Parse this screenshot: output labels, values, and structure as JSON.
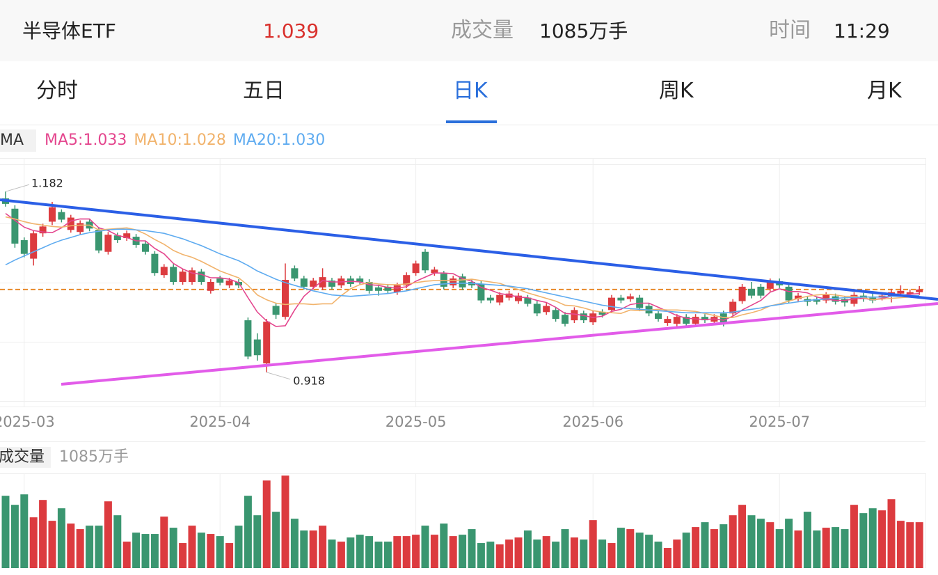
{
  "header": {
    "name": "半导体ETF",
    "price": "1.039",
    "volume_label": "成交量",
    "volume": "1085万手",
    "time_label": "时间",
    "time": "11:29"
  },
  "tabs": [
    "分时",
    "五日",
    "日K",
    "周K",
    "月K"
  ],
  "active_tab": 2,
  "chart_data": {
    "type": "candlestick",
    "indicator": "MA",
    "categories": [
      null,
      null,
      "2025-03",
      null,
      null,
      null,
      null,
      null,
      null,
      null,
      null,
      null,
      null,
      null,
      null,
      null,
      null,
      null,
      null,
      null,
      null,
      null,
      null,
      "2025-04",
      null,
      null,
      null,
      null,
      null,
      null,
      null,
      null,
      null,
      null,
      null,
      null,
      null,
      null,
      null,
      null,
      null,
      null,
      null,
      null,
      "2025-05",
      null,
      null,
      null,
      null,
      null,
      null,
      null,
      null,
      null,
      null,
      null,
      null,
      null,
      null,
      null,
      null,
      null,
      null,
      "2025-06",
      null,
      null,
      null,
      null,
      null,
      null,
      null,
      null,
      null,
      null,
      null,
      null,
      null,
      null,
      null,
      null,
      null,
      null,
      null,
      "2025-07",
      null,
      null,
      null,
      null,
      null,
      null,
      null,
      null,
      null,
      null,
      null,
      null,
      null,
      null,
      null
    ],
    "ylim": [
      0.868,
      1.231
    ],
    "up_color": "#dc3b3f",
    "down_color": "#3a9670",
    "last_price_color": "#e8892a",
    "open": [
      1.172,
      1.157,
      1.111,
      1.084,
      1.121,
      1.138,
      1.152,
      1.126,
      1.123,
      1.138,
      1.126,
      1.094,
      1.118,
      1.114,
      1.116,
      1.106,
      1.091,
      1.06,
      1.072,
      1.05,
      1.05,
      1.065,
      1.037,
      1.055,
      1.045,
      1.05,
      0.994,
      0.966,
      0.931,
      1.015,
      0.999,
      1.07,
      1.055,
      1.043,
      1.042,
      1.052,
      1.045,
      1.055,
      1.055,
      1.05,
      1.042,
      1.043,
      1.035,
      1.045,
      1.063,
      1.094,
      1.063,
      1.062,
      1.045,
      1.058,
      1.05,
      1.047,
      1.027,
      1.02,
      1.027,
      1.022,
      1.027,
      1.018,
      1.006,
      1.009,
      1.002,
      0.994,
      1.004,
      0.991,
      1.006,
      1.009,
      1.027,
      1.025,
      1.027,
      1.015,
      1.004,
      0.99,
      0.989,
      0.999,
      0.989,
      0.999,
      0.992,
      1.004,
      1.004,
      1.022,
      1.04,
      1.043,
      1.04,
      1.051,
      1.043,
      1.025,
      1.025,
      1.025,
      1.023,
      1.029,
      1.025,
      1.018,
      1.03,
      1.027,
      1.027,
      1.029,
      1.033,
      1.032,
      1.035
    ],
    "high": [
      1.182,
      1.162,
      1.115,
      1.125,
      1.135,
      1.167,
      1.156,
      1.148,
      1.14,
      1.142,
      1.13,
      1.123,
      1.122,
      1.125,
      1.12,
      1.11,
      1.095,
      1.076,
      1.076,
      1.069,
      1.071,
      1.069,
      1.054,
      1.059,
      1.056,
      1.054,
      0.998,
      0.975,
      0.996,
      1.019,
      1.077,
      1.074,
      1.059,
      1.056,
      1.07,
      1.056,
      1.059,
      1.059,
      1.059,
      1.054,
      1.046,
      1.047,
      1.049,
      1.064,
      1.081,
      1.098,
      1.072,
      1.066,
      1.059,
      1.062,
      1.054,
      1.051,
      1.031,
      1.035,
      1.037,
      1.034,
      1.031,
      1.022,
      1.019,
      1.013,
      1.006,
      1.013,
      1.008,
      1.008,
      1.01,
      1.031,
      1.031,
      1.033,
      1.031,
      1.019,
      1.008,
      1.0,
      1.003,
      1.003,
      1.003,
      1.003,
      1.003,
      1.008,
      1.025,
      1.047,
      1.05,
      1.047,
      1.055,
      1.055,
      1.047,
      1.034,
      1.029,
      1.029,
      1.035,
      1.033,
      1.029,
      1.035,
      1.034,
      1.035,
      1.034,
      1.04,
      1.045,
      1.039,
      1.044
    ],
    "low": [
      1.16,
      1.1,
      1.086,
      1.074,
      1.116,
      1.133,
      1.137,
      1.122,
      1.119,
      1.124,
      1.092,
      1.09,
      1.107,
      1.11,
      1.1,
      1.09,
      1.059,
      1.056,
      1.046,
      1.046,
      1.046,
      1.046,
      1.033,
      1.045,
      1.041,
      1.041,
      0.937,
      0.935,
      0.918,
      0.996,
      0.995,
      1.051,
      1.039,
      1.039,
      1.038,
      1.039,
      1.041,
      1.043,
      1.046,
      1.033,
      1.03,
      1.033,
      1.031,
      1.041,
      1.059,
      1.063,
      1.059,
      1.039,
      1.041,
      1.038,
      1.041,
      1.019,
      1.019,
      1.016,
      1.023,
      1.018,
      1.014,
      1.0,
      1.002,
      0.992,
      0.985,
      0.99,
      0.99,
      0.987,
      0.998,
      1.005,
      1.019,
      1.021,
      1.008,
      1.0,
      0.992,
      0.986,
      0.985,
      0.985,
      0.985,
      0.99,
      0.988,
      0.985,
      1.0,
      1.018,
      1.026,
      1.026,
      1.036,
      1.041,
      1.019,
      1.021,
      1.015,
      1.017,
      1.019,
      1.017,
      1.014,
      1.014,
      1.021,
      1.019,
      1.023,
      1.02,
      1.029,
      1.028,
      1.031
    ],
    "close": [
      1.164,
      1.106,
      1.091,
      1.121,
      1.131,
      1.159,
      1.141,
      1.144,
      1.136,
      1.128,
      1.096,
      1.119,
      1.111,
      1.121,
      1.104,
      1.094,
      1.063,
      1.072,
      1.05,
      1.065,
      1.067,
      1.05,
      1.05,
      1.049,
      1.052,
      1.045,
      0.941,
      0.943,
      0.992,
      1.002,
      1.053,
      1.055,
      1.043,
      1.052,
      1.057,
      1.043,
      1.055,
      1.047,
      1.05,
      1.037,
      1.037,
      1.037,
      1.045,
      1.06,
      1.077,
      1.067,
      1.068,
      1.043,
      1.055,
      1.042,
      1.045,
      1.023,
      1.023,
      1.031,
      1.033,
      1.03,
      1.018,
      1.004,
      1.015,
      0.996,
      0.989,
      1.009,
      0.994,
      1.004,
      1.002,
      1.027,
      1.023,
      1.029,
      1.012,
      1.004,
      0.996,
      0.996,
      0.999,
      0.989,
      0.999,
      0.994,
      0.999,
      0.989,
      1.021,
      1.043,
      1.03,
      1.03,
      1.051,
      1.045,
      1.023,
      1.03,
      1.021,
      1.021,
      1.031,
      1.021,
      1.02,
      1.031,
      1.025,
      1.023,
      1.03,
      1.035,
      1.037,
      1.035,
      1.039
    ],
    "series": [
      {
        "name": "MA5:1.033",
        "color": "#e4468e",
        "values": [
          1.15,
          1.14,
          1.13,
          1.125,
          1.123,
          1.122,
          1.129,
          1.139,
          1.142,
          1.142,
          1.129,
          1.125,
          1.118,
          1.115,
          1.11,
          1.11,
          1.099,
          1.091,
          1.077,
          1.069,
          1.063,
          1.061,
          1.056,
          1.056,
          1.054,
          1.049,
          1.027,
          1.006,
          0.993,
          0.985,
          0.986,
          1.009,
          1.029,
          1.041,
          1.052,
          1.05,
          1.05,
          1.051,
          1.05,
          1.046,
          1.045,
          1.042,
          1.041,
          1.043,
          1.051,
          1.057,
          1.063,
          1.063,
          1.062,
          1.055,
          1.051,
          1.042,
          1.038,
          1.033,
          1.031,
          1.028,
          1.027,
          1.023,
          1.02,
          1.013,
          1.004,
          1.003,
          1.001,
          0.998,
          1.0,
          1.007,
          1.01,
          1.017,
          1.019,
          1.019,
          1.013,
          1.007,
          1.001,
          0.997,
          0.996,
          0.995,
          0.996,
          0.994,
          1.0,
          1.009,
          1.016,
          1.023,
          1.035,
          1.04,
          1.036,
          1.036,
          1.034,
          1.028,
          1.025,
          1.023,
          1.023,
          1.025,
          1.026,
          1.024,
          1.026,
          1.029,
          1.03,
          1.032,
          1.033
        ]
      },
      {
        "name": "MA10:1.028",
        "color": "#f1b36c",
        "values": [
          1.145,
          1.142,
          1.138,
          1.135,
          1.133,
          1.131,
          1.13,
          1.132,
          1.133,
          1.133,
          1.126,
          1.127,
          1.128,
          1.129,
          1.126,
          1.12,
          1.112,
          1.105,
          1.096,
          1.09,
          1.086,
          1.08,
          1.073,
          1.066,
          1.061,
          1.056,
          1.045,
          1.031,
          1.024,
          1.019,
          1.017,
          1.018,
          1.018,
          1.017,
          1.018,
          1.018,
          1.03,
          1.04,
          1.046,
          1.049,
          1.047,
          1.046,
          1.046,
          1.047,
          1.049,
          1.051,
          1.052,
          1.052,
          1.052,
          1.053,
          1.054,
          1.052,
          1.05,
          1.048,
          1.043,
          1.039,
          1.034,
          1.03,
          1.026,
          1.022,
          1.016,
          1.015,
          1.012,
          1.008,
          1.006,
          1.005,
          1.004,
          1.009,
          1.008,
          1.009,
          1.01,
          1.009,
          1.009,
          1.008,
          1.007,
          1.004,
          1.001,
          0.998,
          0.998,
          1.002,
          1.005,
          1.009,
          1.015,
          1.018,
          1.022,
          1.026,
          1.029,
          1.031,
          1.032,
          1.031,
          1.029,
          1.029,
          1.027,
          1.024,
          1.025,
          1.026,
          1.027,
          1.028,
          1.028
        ]
      },
      {
        "name": "MA20:1.030",
        "color": "#5eabf0",
        "values": [
          1.075,
          1.082,
          1.088,
          1.094,
          1.1,
          1.106,
          1.111,
          1.115,
          1.119,
          1.122,
          1.124,
          1.126,
          1.127,
          1.127,
          1.126,
          1.125,
          1.123,
          1.121,
          1.117,
          1.113,
          1.108,
          1.103,
          1.097,
          1.091,
          1.086,
          1.081,
          1.074,
          1.066,
          1.06,
          1.054,
          1.049,
          1.045,
          1.041,
          1.037,
          1.034,
          1.031,
          1.03,
          1.029,
          1.03,
          1.031,
          1.032,
          1.033,
          1.035,
          1.037,
          1.04,
          1.043,
          1.046,
          1.047,
          1.048,
          1.048,
          1.048,
          1.047,
          1.046,
          1.045,
          1.044,
          1.042,
          1.04,
          1.037,
          1.034,
          1.031,
          1.028,
          1.025,
          1.022,
          1.019,
          1.016,
          1.014,
          1.012,
          1.011,
          1.01,
          1.009,
          1.008,
          1.007,
          1.006,
          1.005,
          1.005,
          1.005,
          1.005,
          1.005,
          1.006,
          1.008,
          1.01,
          1.012,
          1.015,
          1.017,
          1.019,
          1.021,
          1.023,
          1.024,
          1.025,
          1.026,
          1.027,
          1.027,
          1.028,
          1.028,
          1.028,
          1.029,
          1.029,
          1.03,
          1.03
        ]
      }
    ],
    "volume": {
      "title": "成交量",
      "label": "1085万手",
      "ylim": [
        0,
        2240
      ],
      "values": [
        1710,
        1496,
        1743,
        1200,
        1611,
        1118,
        1414,
        1052,
        921,
        1003,
        1003,
        1578,
        1249,
        625,
        838,
        806,
        806,
        1217,
        954,
        592,
        1003,
        838,
        806,
        756,
        592,
        1003,
        1710,
        1249,
        2071,
        1332,
        2187,
        1167,
        888,
        888,
        1003,
        674,
        625,
        723,
        789,
        756,
        625,
        625,
        756,
        756,
        789,
        1003,
        789,
        1052,
        756,
        789,
        921,
        592,
        625,
        559,
        674,
        723,
        888,
        674,
        756,
        625,
        921,
        723,
        674,
        1134,
        674,
        592,
        954,
        921,
        838,
        789,
        625,
        477,
        674,
        838,
        970,
        1085,
        921,
        1036,
        1249,
        1496,
        1249,
        1167,
        1085,
        921,
        1167,
        888,
        1332,
        888,
        954,
        970,
        921,
        1496,
        1299,
        1414,
        1365,
        1628,
        1118,
        1085,
        1085
      ]
    }
  }
}
